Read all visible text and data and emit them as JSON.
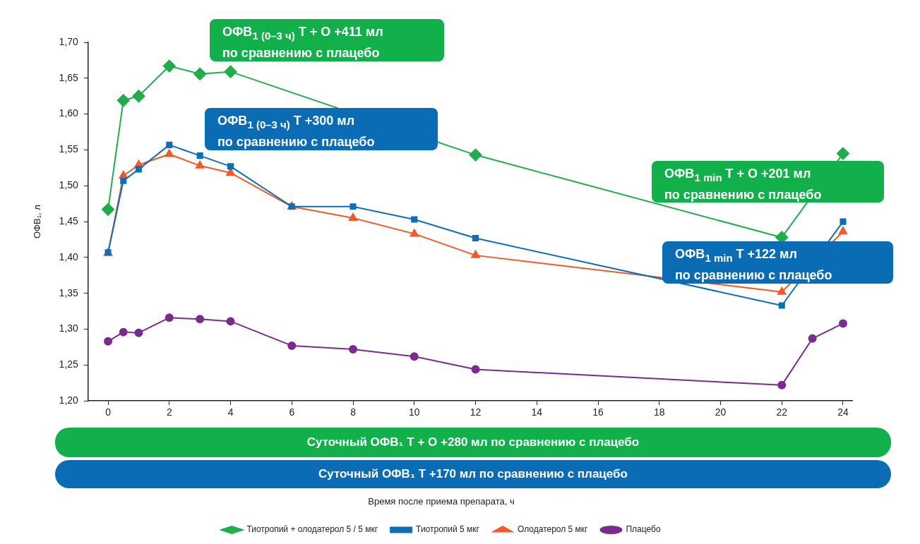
{
  "chart_data": {
    "type": "line",
    "ylabel": "ОФВ₁, л",
    "xlim": [
      -0.65,
      24.3
    ],
    "xticks": [
      0,
      2,
      4,
      6,
      8,
      10,
      12,
      14,
      16,
      18,
      20,
      22,
      24
    ],
    "ylim": [
      1.2,
      1.7
    ],
    "yticks": [
      {
        "value": 1.2,
        "label": "1,20"
      },
      {
        "value": 1.25,
        "label": "1,25"
      },
      {
        "value": 1.3,
        "label": "1,30"
      },
      {
        "value": 1.35,
        "label": "1,35"
      },
      {
        "value": 1.4,
        "label": "1,40"
      },
      {
        "value": 1.45,
        "label": "1,45"
      },
      {
        "value": 1.5,
        "label": "1,50"
      },
      {
        "value": 1.55,
        "label": "1,55"
      },
      {
        "value": 1.6,
        "label": "1,60"
      },
      {
        "value": 1.65,
        "label": "1,65"
      },
      {
        "value": 1.7,
        "label": "1,70"
      }
    ],
    "grid": false,
    "legend": "bottom",
    "line_style": "solid",
    "series": [
      {
        "name": "Тиотропий + олодатерол 5 / 5 мкг",
        "color": "#1fae4b",
        "marker": "diamond",
        "x": [
          0,
          0.5,
          1,
          2,
          3,
          4,
          12,
          22,
          24
        ],
        "values": [
          1.467,
          1.619,
          1.625,
          1.667,
          1.656,
          1.659,
          1.543,
          1.428,
          1.545
        ]
      },
      {
        "name": "Тиотропий 5 мкг",
        "color": "#0b6fb8",
        "marker": "square",
        "x": [
          0,
          0.5,
          1,
          2,
          3,
          4,
          6,
          8,
          10,
          12,
          22,
          24
        ],
        "values": [
          1.407,
          1.507,
          1.523,
          1.557,
          1.542,
          1.527,
          1.471,
          1.471,
          1.453,
          1.427,
          1.333,
          1.45
        ]
      },
      {
        "name": "Олодатерол 5 мкг",
        "color": "#f05a28",
        "marker": "triangle",
        "x": [
          0,
          0.5,
          1,
          2,
          3,
          4,
          6,
          8,
          10,
          12,
          22,
          24
        ],
        "values": [
          1.406,
          1.514,
          1.529,
          1.544,
          1.528,
          1.518,
          1.471,
          1.455,
          1.433,
          1.403,
          1.352,
          1.436
        ]
      },
      {
        "name": "Плацебо",
        "color": "#7b2a8e",
        "marker": "circle",
        "x": [
          0,
          0.5,
          1,
          2,
          3,
          4,
          6,
          8,
          10,
          12,
          22,
          23,
          24
        ],
        "values": [
          1.283,
          1.296,
          1.295,
          1.316,
          1.314,
          1.311,
          1.277,
          1.272,
          1.262,
          1.244,
          1.222,
          1.287,
          1.308
        ]
      }
    ],
    "annotations": [
      "ОФВ$_{1 (0–3 ч)}$ T + O  +411 мл по сравнению с плацебо",
      "ОФВ$_{1 (0–3 ч)}$ T  +300 мл по сравнению с плацебо",
      "ОФВ$_{1 min}$ T + O  +201 мл по сравнению с плацебо",
      "ОФВ$_{1 min}$ T  +122 мл по сравнению с плацебо",
      "Суточный ОФВ₁ T + O  +280 мл по сравнению с плацебо",
      "Суточный ОФВ₁ T  +170 мл по сравнению с плацебо",
      "Время после приема препарата, ч"
    ]
  }
}
